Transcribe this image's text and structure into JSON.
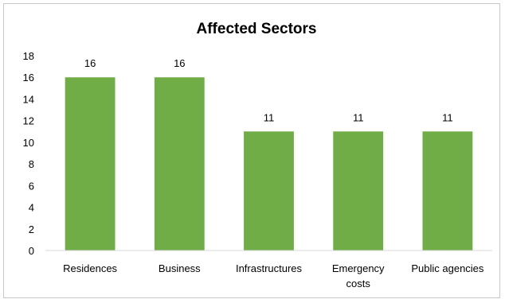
{
  "chart_data": {
    "type": "bar",
    "title": "Affected Sectors",
    "xlabel": "",
    "ylabel": "",
    "categories": [
      "Residences",
      "Business",
      "Infrastructures",
      "Emergency costs",
      "Public agencies"
    ],
    "category_lines": [
      [
        "Residences"
      ],
      [
        "Business"
      ],
      [
        "Infrastructures"
      ],
      [
        "Emergency",
        "costs"
      ],
      [
        "Public agencies"
      ]
    ],
    "values": [
      16,
      16,
      11,
      11,
      11
    ],
    "data_labels": [
      "16",
      "16",
      "11",
      "11",
      "11"
    ],
    "ylim": [
      0,
      18
    ],
    "yticks": [
      "0",
      "2",
      "4",
      "6",
      "8",
      "10",
      "12",
      "14",
      "16",
      "18"
    ],
    "grid": false,
    "legend": "none",
    "bar_color": "#70ad47"
  }
}
